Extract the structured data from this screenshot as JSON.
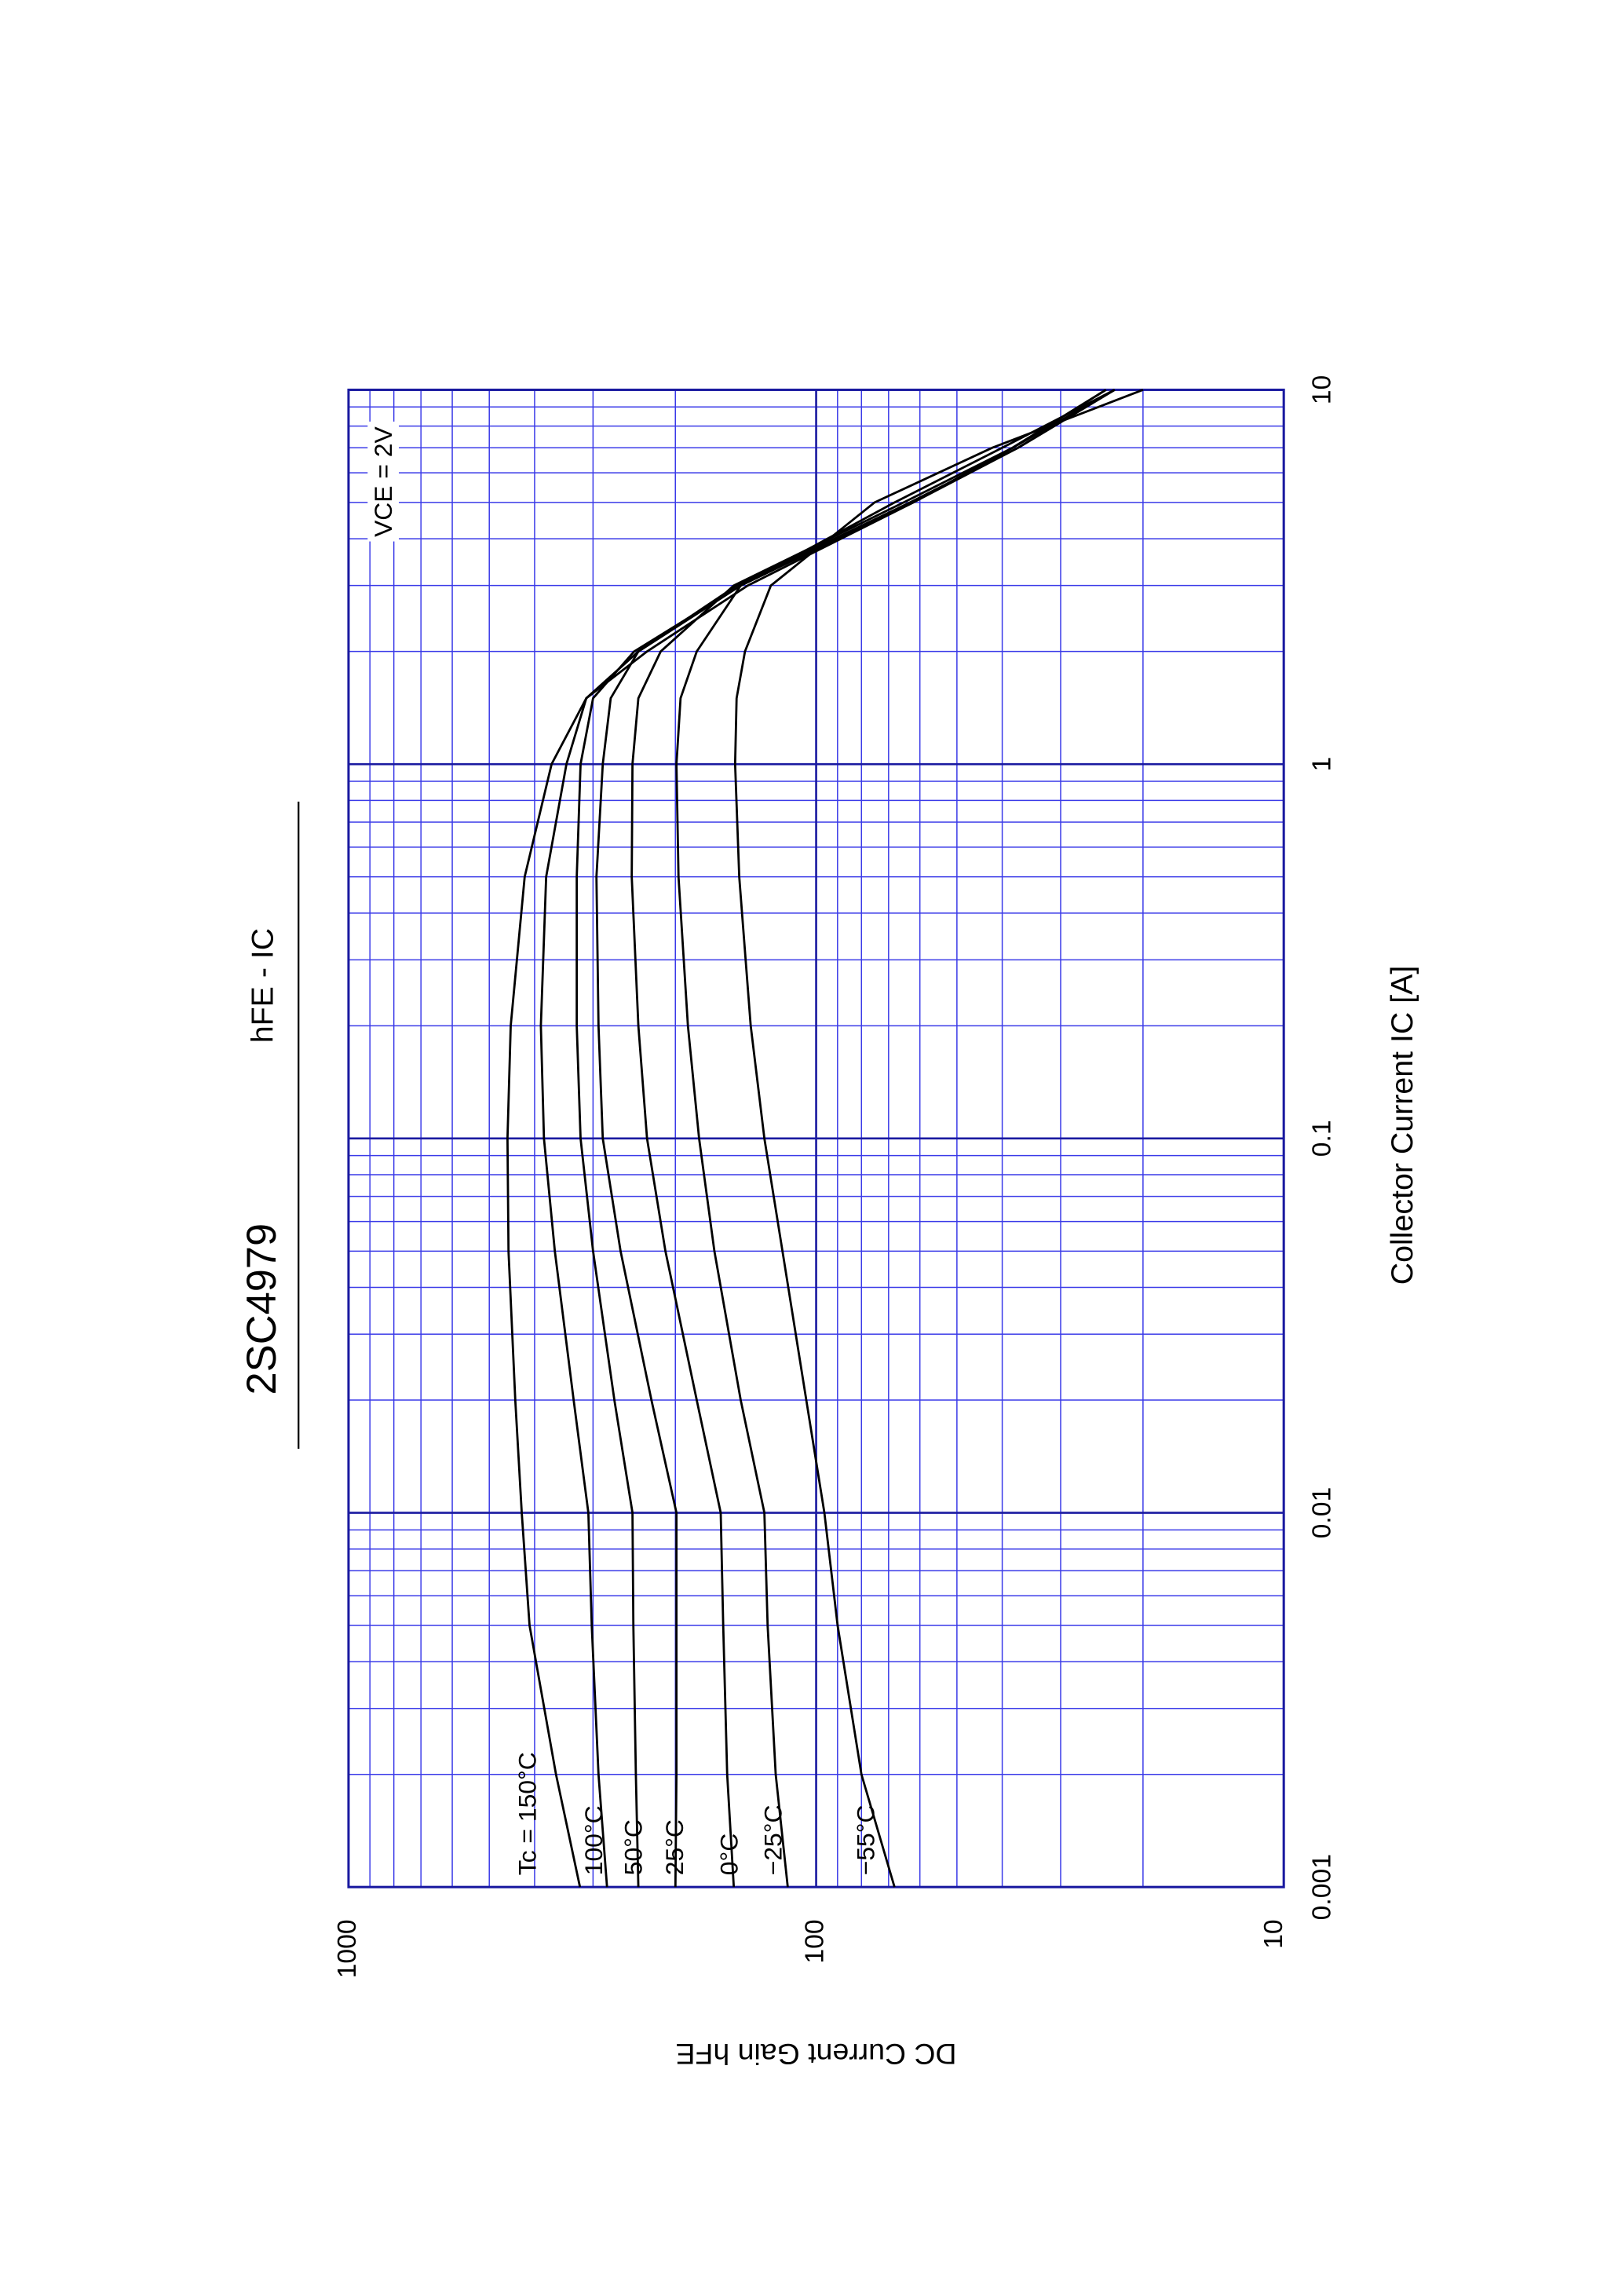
{
  "chart_data": {
    "type": "line",
    "title": "2SC4979",
    "subtitle": "hFE - IC",
    "x_label": "Collector Current  IC  [A]",
    "y_label": "DC Current Gain  hFE",
    "annotation": "VCE = 2V",
    "x_log": true,
    "y_log": true,
    "grid": true,
    "grid_color": "#3a3ae8",
    "major_grid_color": "#1a1aa0",
    "xlim": [
      0.001,
      10
    ],
    "ylim": [
      10,
      1000
    ],
    "xticks": [
      0.001,
      0.01,
      0.1,
      1,
      10
    ],
    "yticks": [
      10,
      100,
      1000
    ],
    "xminor": [
      0.002,
      0.003,
      0.004,
      0.005,
      0.006,
      0.007,
      0.008,
      0.009,
      0.02,
      0.03,
      0.04,
      0.05,
      0.06,
      0.07,
      0.08,
      0.09,
      0.2,
      0.3,
      0.4,
      0.5,
      0.6,
      0.7,
      0.8,
      0.9,
      2,
      3,
      4,
      5,
      6,
      7,
      8,
      9
    ],
    "yminor": [
      20,
      30,
      40,
      50,
      60,
      70,
      80,
      90,
      200,
      300,
      400,
      500,
      600,
      700,
      800,
      900
    ],
    "x": [
      0.001,
      0.002,
      0.005,
      0.01,
      0.02,
      0.05,
      0.1,
      0.2,
      0.5,
      1,
      1.5,
      2,
      3,
      5,
      7,
      10
    ],
    "series": [
      {
        "name": "Tc = 150°C",
        "color": "#000000",
        "values": [
          320,
          360,
          410,
          426,
          440,
          455,
          457,
          450,
          420,
          368,
          310,
          230,
          140,
          62,
          38,
          24
        ]
      },
      {
        "name": "100°C",
        "color": "#000000",
        "values": [
          280,
          292,
          302,
          307,
          330,
          362,
          382,
          388,
          378,
          342,
          310,
          240,
          145,
          62,
          38,
          24
        ]
      },
      {
        "name": "50°C",
        "color": "#000000",
        "values": [
          240,
          243,
          246,
          247,
          270,
          300,
          319,
          325,
          325,
          319,
          300,
          245,
          145,
          62,
          37,
          23
        ]
      },
      {
        "name": "25°C",
        "color": "#000000",
        "values": [
          200,
          199,
          199,
          199,
          225,
          262,
          286,
          292,
          295,
          286,
          275,
          240,
          148,
          63,
          37,
          23
        ]
      },
      {
        "name": "0°C",
        "color": "#000000",
        "values": [
          150,
          155,
          158,
          160,
          180,
          210,
          230,
          240,
          248,
          247,
          240,
          215,
          150,
          65,
          38,
          23
        ]
      },
      {
        "name": "−25°C",
        "color": "#000000",
        "values": [
          115,
          122,
          127,
          129,
          145,
          165,
          178,
          188,
          197,
          199,
          195,
          180,
          145,
          68,
          40,
          23
        ]
      },
      {
        "name": "−55°C",
        "color": "#000000",
        "values": [
          68,
          80,
          90,
          96,
          105,
          118,
          129,
          138,
          146,
          149,
          148,
          142,
          125,
          75,
          42,
          20
        ]
      }
    ]
  }
}
